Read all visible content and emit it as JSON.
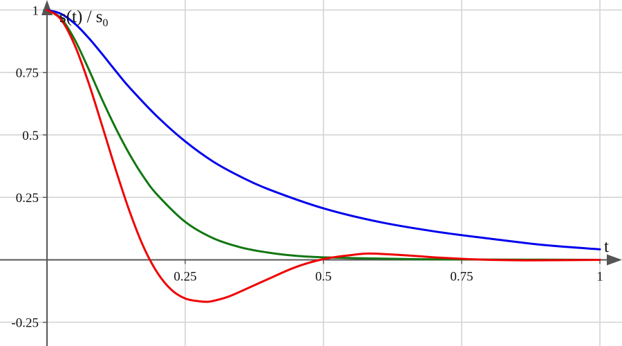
{
  "chart_data": {
    "type": "line",
    "title": "",
    "ylabel": "s(t) / s",
    "ylabel_subscript": "0",
    "xlabel": "t",
    "xlim": [
      -0.085,
      1.04
    ],
    "ylim": [
      -0.345,
      1.04
    ],
    "grid": true,
    "x_ticks": [
      {
        "value": 0.25,
        "label": "0.25"
      },
      {
        "value": 0.5,
        "label": "0.5"
      },
      {
        "value": 0.75,
        "label": "0.75"
      },
      {
        "value": 1,
        "label": "1"
      }
    ],
    "y_ticks": [
      {
        "value": -0.25,
        "label": "-0.25"
      },
      {
        "value": 0.25,
        "label": "0.25"
      },
      {
        "value": 0.5,
        "label": "0.5"
      },
      {
        "value": 0.75,
        "label": "0.75"
      },
      {
        "value": 1,
        "label": "1"
      }
    ],
    "series": [
      {
        "color": "#0000ee",
        "x": [
          0,
          0.025,
          0.05,
          0.075,
          0.1,
          0.125,
          0.15,
          0.2,
          0.25,
          0.3,
          0.35,
          0.4,
          0.5,
          0.6,
          0.7,
          0.8,
          0.9,
          1.0
        ],
        "y": [
          1.0,
          0.985,
          0.946,
          0.889,
          0.823,
          0.754,
          0.688,
          0.572,
          0.474,
          0.394,
          0.333,
          0.283,
          0.206,
          0.152,
          0.114,
          0.085,
          0.059,
          0.042
        ]
      },
      {
        "color": "#117711",
        "x": [
          0,
          0.025,
          0.05,
          0.075,
          0.1,
          0.125,
          0.15,
          0.175,
          0.2,
          0.25,
          0.3,
          0.35,
          0.4,
          0.45,
          0.5,
          0.6,
          0.7,
          0.8,
          1.0
        ],
        "y": [
          1.0,
          0.968,
          0.882,
          0.765,
          0.64,
          0.524,
          0.42,
          0.331,
          0.259,
          0.152,
          0.087,
          0.05,
          0.029,
          0.016,
          0.01,
          0.005,
          0.002,
          0.001,
          0.0
        ]
      },
      {
        "color": "#ee0000",
        "x": [
          0,
          0.025,
          0.05,
          0.075,
          0.1,
          0.125,
          0.15,
          0.175,
          0.2,
          0.225,
          0.25,
          0.275,
          0.29,
          0.3,
          0.325,
          0.35,
          0.4,
          0.45,
          0.5,
          0.55,
          0.58,
          0.6,
          0.65,
          0.7,
          0.75,
          0.8,
          0.85,
          0.9,
          1.0
        ],
        "y": [
          1.0,
          0.963,
          0.86,
          0.71,
          0.535,
          0.356,
          0.19,
          0.05,
          -0.053,
          -0.12,
          -0.155,
          -0.166,
          -0.168,
          -0.165,
          -0.15,
          -0.127,
          -0.077,
          -0.029,
          0.003,
          0.019,
          0.025,
          0.024,
          0.018,
          0.01,
          0.004,
          0.0,
          -0.002,
          -0.002,
          0.0
        ]
      }
    ]
  }
}
